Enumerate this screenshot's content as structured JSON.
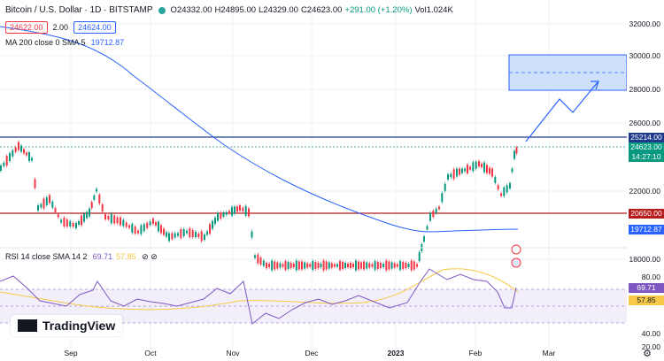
{
  "header": {
    "symbol": "Bitcoin / U.S. Dollar · 1D · BITSTAMP",
    "open": "O24332.00",
    "high": "H24895.00",
    "low": "L24329.00",
    "close": "C24623.00",
    "change": "+291.00 (+1.20%)",
    "volume": "Vol1.024K",
    "bid": "24622.00",
    "spread": "2.00",
    "ask": "24624.00"
  },
  "indicators": {
    "ma_label": "MA 200 close 0 SMA 5",
    "ma_value": "19712.87",
    "rsi_label": "RSI 14 close SMA 14 2",
    "rsi_value": "69.71",
    "rsi_sma": "57.85"
  },
  "price_axis": {
    "ticks": [
      "32000.00",
      "30000.00",
      "28000.00",
      "26000.00",
      "22000.00",
      "18000.00",
      "80.00",
      "40.00",
      "20.00"
    ],
    "tags": {
      "resistance": "25214.00",
      "last": "24623.00",
      "countdown": "14:27:10",
      "support": "20650.00",
      "ma": "19712.87",
      "rsi": "69.71",
      "rsi_sma": "57.85"
    }
  },
  "time_axis": [
    "Sep",
    "Oct",
    "Nov",
    "Dec",
    "2023",
    "Feb",
    "Mar"
  ],
  "logo": "TradingView",
  "colors": {
    "up": "#089981",
    "down": "#f23645",
    "ma": "#2962ff",
    "rsi": "#7e57c2",
    "rsi_sma": "#f7c948"
  }
}
